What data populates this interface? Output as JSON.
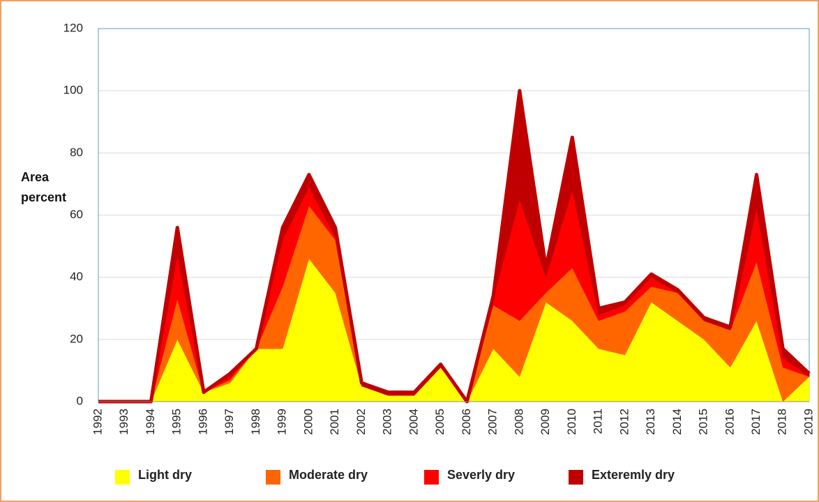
{
  "chart_data": {
    "type": "stacked_area",
    "y_label": "Area percent",
    "categories": [
      "1992",
      "1993",
      "1994",
      "1995",
      "1996",
      "1997",
      "1998",
      "1999",
      "2000",
      "2001",
      "2002",
      "2003",
      "2004",
      "2005",
      "2006",
      "2007",
      "2008",
      "2009",
      "2010",
      "2011",
      "2012",
      "2013",
      "2014",
      "2015",
      "2016",
      "2017",
      "2018",
      "2019"
    ],
    "series": [
      {
        "name": "Light dry",
        "color": "#ffff00",
        "values": [
          0,
          0,
          0,
          20,
          3,
          6,
          17,
          17,
          46,
          35,
          5,
          2,
          2,
          11,
          0,
          17,
          8,
          32,
          26,
          17,
          15,
          32,
          26,
          20,
          11,
          26,
          0,
          8
        ]
      },
      {
        "name": "Moderate dry",
        "color": "#ff6600",
        "values": [
          0,
          0,
          0,
          13,
          0,
          1,
          0,
          20,
          17,
          17,
          0,
          0,
          0,
          0,
          0,
          14,
          18,
          3,
          17,
          9,
          14,
          5,
          9,
          6,
          12,
          19,
          11,
          0
        ]
      },
      {
        "name": "Severly dry",
        "color": "#ff0000",
        "values": [
          0,
          0,
          0,
          14,
          0,
          1,
          0,
          15,
          6,
          1,
          0,
          0,
          0,
          0,
          0,
          2,
          39,
          5,
          25,
          2,
          2,
          3,
          0,
          0,
          0,
          17,
          3,
          0
        ]
      },
      {
        "name": "Exteremly dry",
        "color": "#c00000",
        "values": [
          0,
          0,
          0,
          9,
          0,
          1,
          0,
          4,
          4,
          3,
          1,
          1,
          1,
          1,
          0,
          1,
          35,
          3,
          17,
          2,
          1,
          1,
          1,
          1,
          1,
          11,
          3,
          1
        ]
      }
    ],
    "ylim": [
      0,
      120
    ],
    "yticks": [
      0,
      20,
      40,
      60,
      80,
      100,
      120
    ],
    "grid": true
  }
}
